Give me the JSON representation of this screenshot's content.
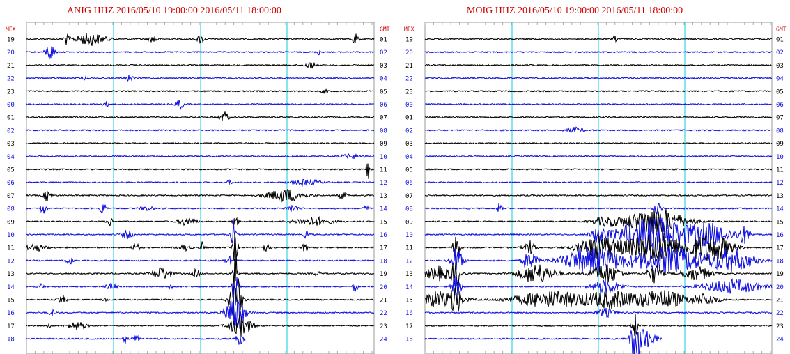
{
  "panels": [
    {
      "title": "ANIG HHZ 2016/05/10 19:00:00 2016/05/11 18:00:00",
      "left_header": "MEX",
      "right_header": "GMT",
      "left_labels": [
        "19",
        "20",
        "21",
        "22",
        "23",
        "00",
        "01",
        "02",
        "03",
        "04",
        "05",
        "06",
        "07",
        "08",
        "09",
        "10",
        "11",
        "12",
        "13",
        "14",
        "15",
        "16",
        "17",
        "18"
      ],
      "right_labels": [
        "01",
        "02",
        "03",
        "04",
        "05",
        "06",
        "07",
        "08",
        "09",
        "10",
        "11",
        "12",
        "13",
        "14",
        "15",
        "16",
        "17",
        "18",
        "19",
        "20",
        "21",
        "22",
        "23",
        "24"
      ]
    },
    {
      "title": "MOIG HHZ 2016/05/10 19:00:00 2016/05/11 18:00:00",
      "left_header": "MEX",
      "right_header": "GMT",
      "left_labels": [
        "19",
        "20",
        "21",
        "22",
        "23",
        "00",
        "01",
        "02",
        "03",
        "04",
        "05",
        "06",
        "07",
        "08",
        "09",
        "10",
        "11",
        "12",
        "13",
        "14",
        "15",
        "16",
        "17",
        "18"
      ],
      "right_labels": [
        "01",
        "02",
        "03",
        "04",
        "05",
        "06",
        "07",
        "08",
        "09",
        "10",
        "11",
        "12",
        "13",
        "14",
        "15",
        "16",
        "17",
        "18",
        "19",
        "20",
        "21",
        "22",
        "23",
        "24"
      ]
    }
  ]
}
